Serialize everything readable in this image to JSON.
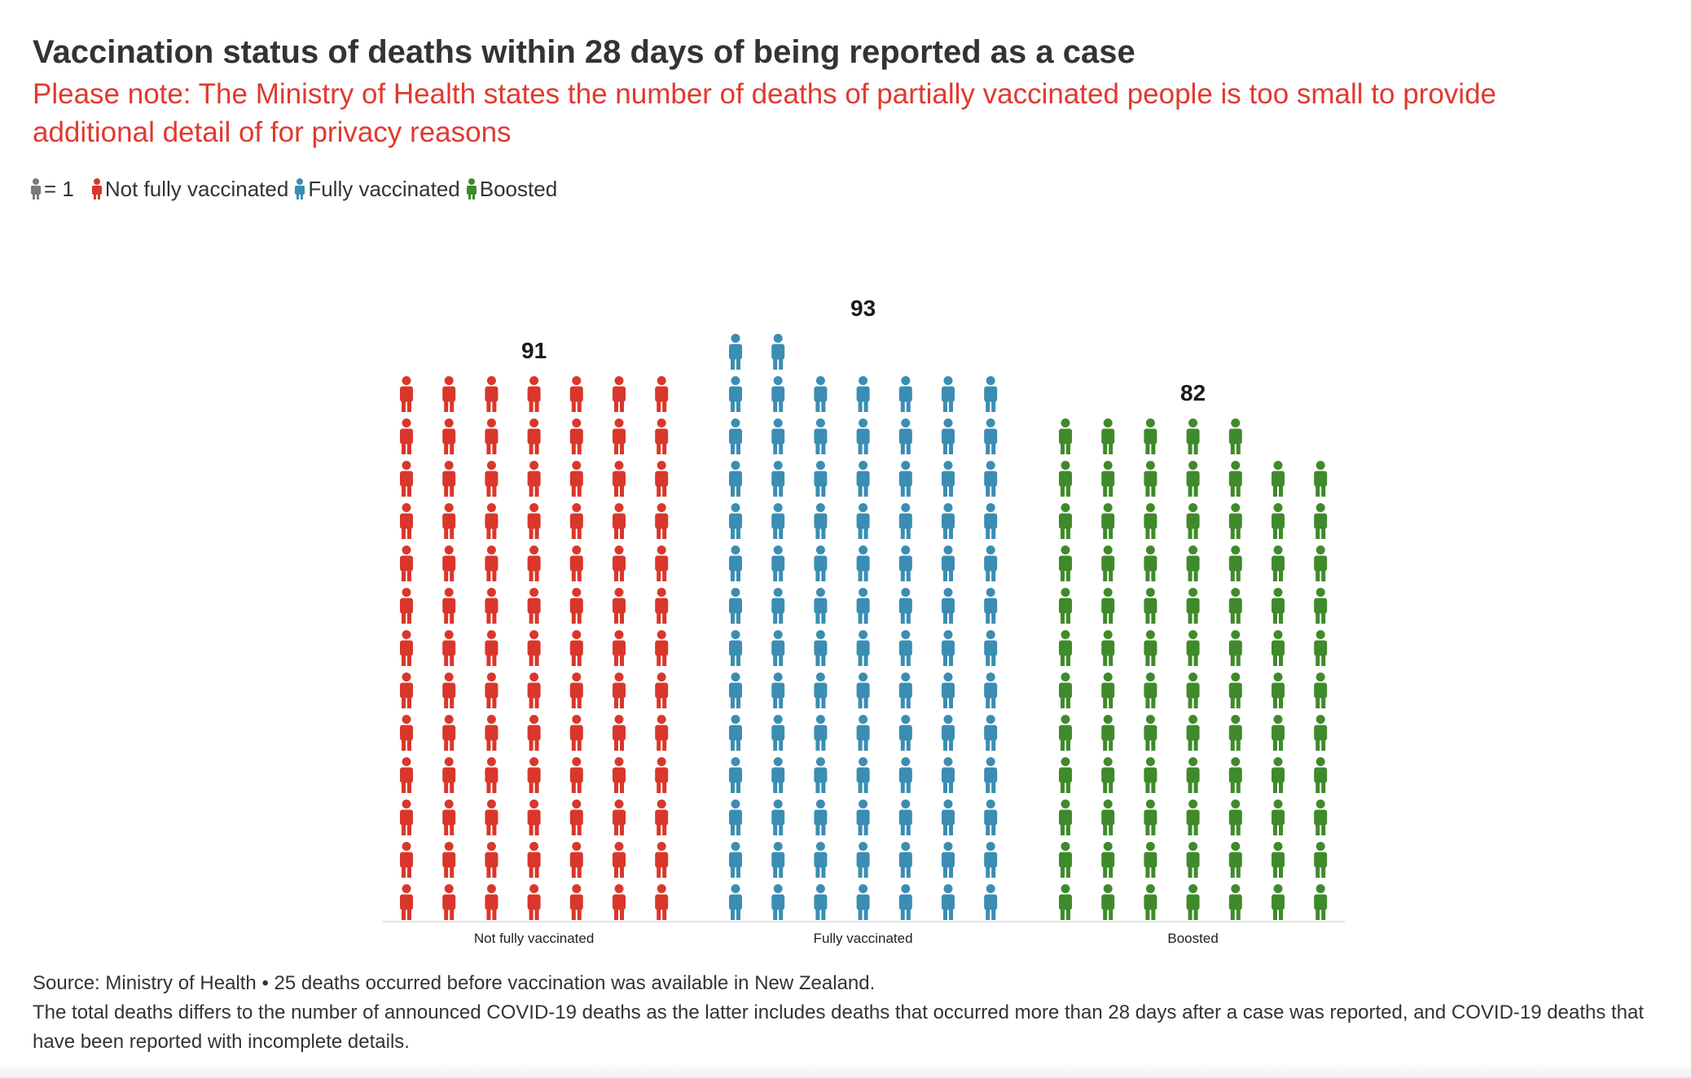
{
  "header": {
    "title": "Vaccination status of deaths within 28 days of being reported as a case",
    "subtitle": "Please note: The Ministry of Health states the number of deaths of partially vaccinated people is too small to provide additional detail of for privacy reasons"
  },
  "legend": {
    "unit_label": "= 1",
    "unit_color": "#7a7a7a",
    "items": [
      {
        "label": "Not fully vaccinated",
        "color": "#d9372b"
      },
      {
        "label": "Fully vaccinated",
        "color": "#3b8db3"
      },
      {
        "label": "Boosted",
        "color": "#3f8a2b"
      }
    ]
  },
  "chart_data": {
    "type": "pictogram",
    "unit": 1,
    "icons_per_column": 13,
    "columns_per_group": 7,
    "categories": [
      "Not fully vaccinated",
      "Fully vaccinated",
      "Boosted"
    ],
    "values": [
      91,
      93,
      82
    ],
    "colors": [
      "#d9372b",
      "#3b8db3",
      "#3f8a2b"
    ]
  },
  "footer": {
    "source": "Source: Ministry of Health • 25 deaths occurred before vaccination was available in New Zealand.",
    "note": "The total deaths differs to the number of announced COVID-19 deaths as the latter includes deaths that occurred more than 28 days after a case was reported, and COVID-19 deaths that have been reported with incomplete details."
  }
}
